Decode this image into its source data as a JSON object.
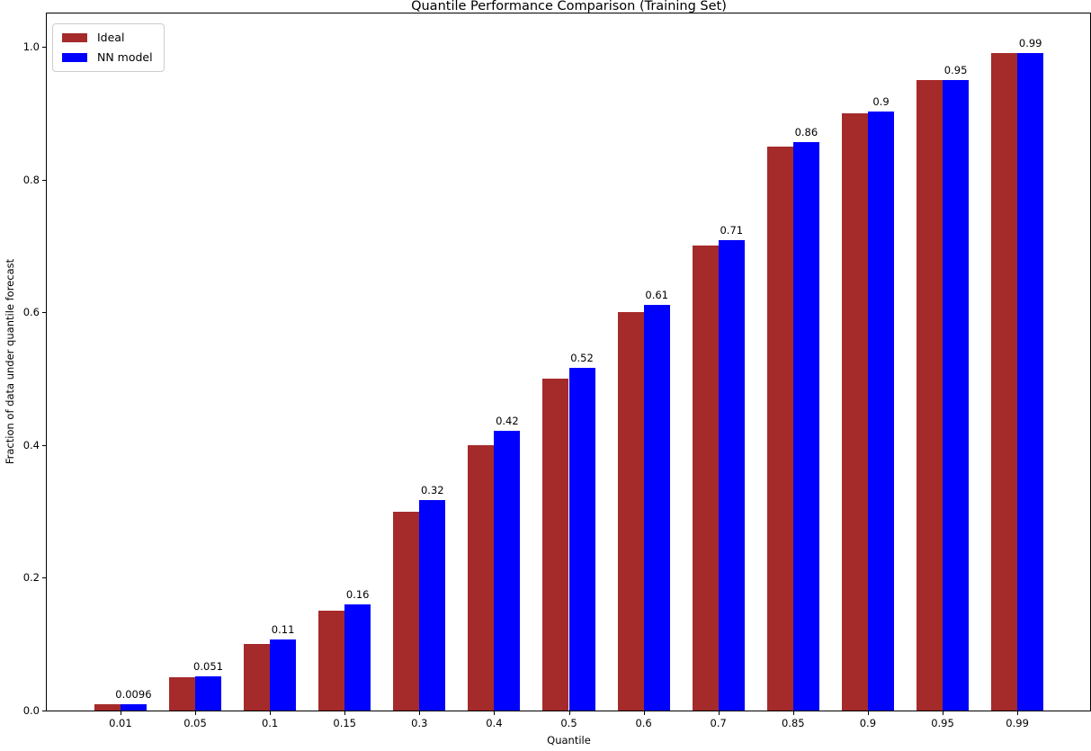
{
  "chart_data": {
    "type": "bar",
    "title": "Quantile Performance Comparison (Training Set)",
    "xlabel": "Quantile",
    "ylabel": "Fraction of data under quantile forecast",
    "categories": [
      "0.01",
      "0.05",
      "0.1",
      "0.15",
      "0.3",
      "0.4",
      "0.5",
      "0.6",
      "0.7",
      "0.85",
      "0.9",
      "0.95",
      "0.99"
    ],
    "series": [
      {
        "name": "Ideal",
        "color": "#A52A2A",
        "values": [
          0.01,
          0.05,
          0.1,
          0.15,
          0.3,
          0.4,
          0.5,
          0.6,
          0.7,
          0.85,
          0.9,
          0.95,
          0.99
        ]
      },
      {
        "name": "NN model",
        "color": "#0000FF",
        "values": [
          0.0096,
          0.051,
          0.107,
          0.16,
          0.317,
          0.422,
          0.516,
          0.611,
          0.709,
          0.857,
          0.903,
          0.95,
          0.99
        ]
      }
    ],
    "bar_value_labels": [
      "0.0096",
      "0.051",
      "0.11",
      "0.16",
      "0.32",
      "0.42",
      "0.52",
      "0.61",
      "0.71",
      "0.86",
      "0.9",
      "0.95",
      "0.99"
    ],
    "labeled_series": "NN model",
    "yticks": [
      "0.0",
      "0.2",
      "0.4",
      "0.6",
      "0.8",
      "1.0"
    ],
    "ylim": [
      0,
      1.05
    ],
    "grid": false,
    "legend_position": "upper-left",
    "colors": {
      "axis": "#000000",
      "text": "#000000",
      "legend_border": "#cccccc",
      "background": "#ffffff"
    }
  }
}
